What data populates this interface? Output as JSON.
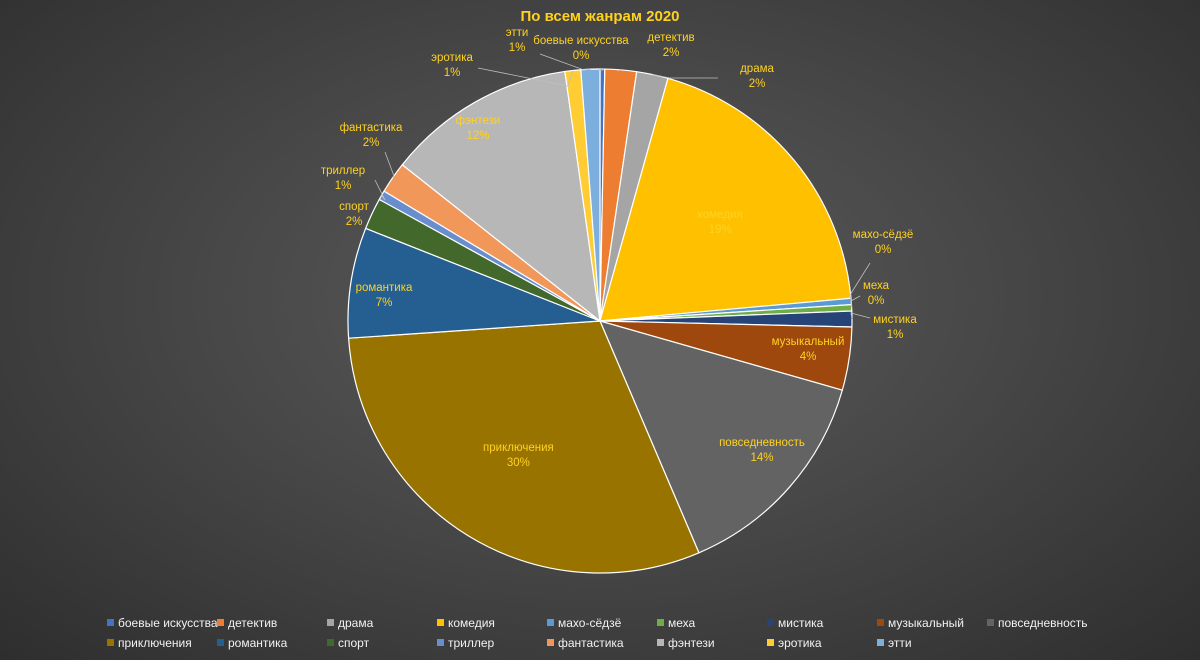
{
  "chart_data": {
    "type": "pie",
    "title": "По всем жанрам 2020",
    "legend_position": "bottom",
    "slices": [
      {
        "name": "боевые искусства",
        "value": 0.3,
        "label": "0%",
        "color": "#4472c4"
      },
      {
        "name": "детектив",
        "value": 2,
        "label": "2%",
        "color": "#ed7d31"
      },
      {
        "name": "драма",
        "value": 2,
        "label": "2%",
        "color": "#a5a5a5"
      },
      {
        "name": "комедия",
        "value": 19,
        "label": "19%",
        "color": "#ffc000"
      },
      {
        "name": "махо-сёдзё",
        "value": 0.4,
        "label": "0%",
        "color": "#5b9bd5"
      },
      {
        "name": "меха",
        "value": 0.4,
        "label": "0%",
        "color": "#70ad47"
      },
      {
        "name": "мистика",
        "value": 1,
        "label": "1%",
        "color": "#264478"
      },
      {
        "name": "музыкальный",
        "value": 4,
        "label": "4%",
        "color": "#9e480e"
      },
      {
        "name": "повседневность",
        "value": 14,
        "label": "14%",
        "color": "#636363"
      },
      {
        "name": "приключения",
        "value": 30,
        "label": "30%",
        "color": "#997300"
      },
      {
        "name": "романтика",
        "value": 7,
        "label": "7%",
        "color": "#255e91"
      },
      {
        "name": "спорт",
        "value": 2,
        "label": "2%",
        "color": "#43682b"
      },
      {
        "name": "триллер",
        "value": 0.6,
        "label": "1%",
        "color": "#698ed0"
      },
      {
        "name": "фантастика",
        "value": 2,
        "label": "2%",
        "color": "#f1975a"
      },
      {
        "name": "фэнтези",
        "value": 12,
        "label": "12%",
        "color": "#b7b7b7"
      },
      {
        "name": "эротика",
        "value": 1,
        "label": "1%",
        "color": "#ffcd33"
      },
      {
        "name": "этти",
        "value": 1.2,
        "label": "1%",
        "color": "#7cafdd"
      }
    ]
  }
}
